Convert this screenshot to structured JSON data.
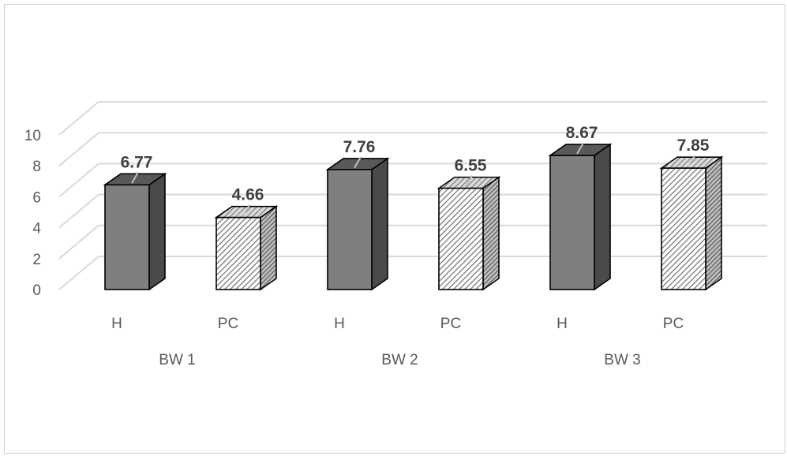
{
  "chart_data": {
    "type": "bar",
    "title": "",
    "xlabel": "",
    "ylabel": "",
    "ylim": [
      0,
      10
    ],
    "yticks": [
      0,
      2,
      4,
      6,
      8,
      10
    ],
    "grid": true,
    "groups": [
      "BW 1",
      "BW 2",
      "BW 3"
    ],
    "categories": [
      "H",
      "PC",
      "H",
      "PC",
      "H",
      "PC"
    ],
    "values": [
      6.77,
      4.66,
      7.76,
      6.55,
      8.67,
      7.85
    ],
    "data_labels": [
      "6.77",
      "4.66",
      "7.76",
      "6.55",
      "8.67",
      "7.85"
    ],
    "styles": [
      "solid",
      "hatched",
      "solid",
      "hatched",
      "solid",
      "hatched"
    ],
    "colors": {
      "solid_front": "#7f7f7f",
      "solid_top": "#595959",
      "solid_side": "#4a4a4a",
      "hatch_bg": "#ffffff",
      "hatch_line": "#6f6f6f",
      "grid": "#d9d9d9",
      "outline": "#000000"
    }
  }
}
